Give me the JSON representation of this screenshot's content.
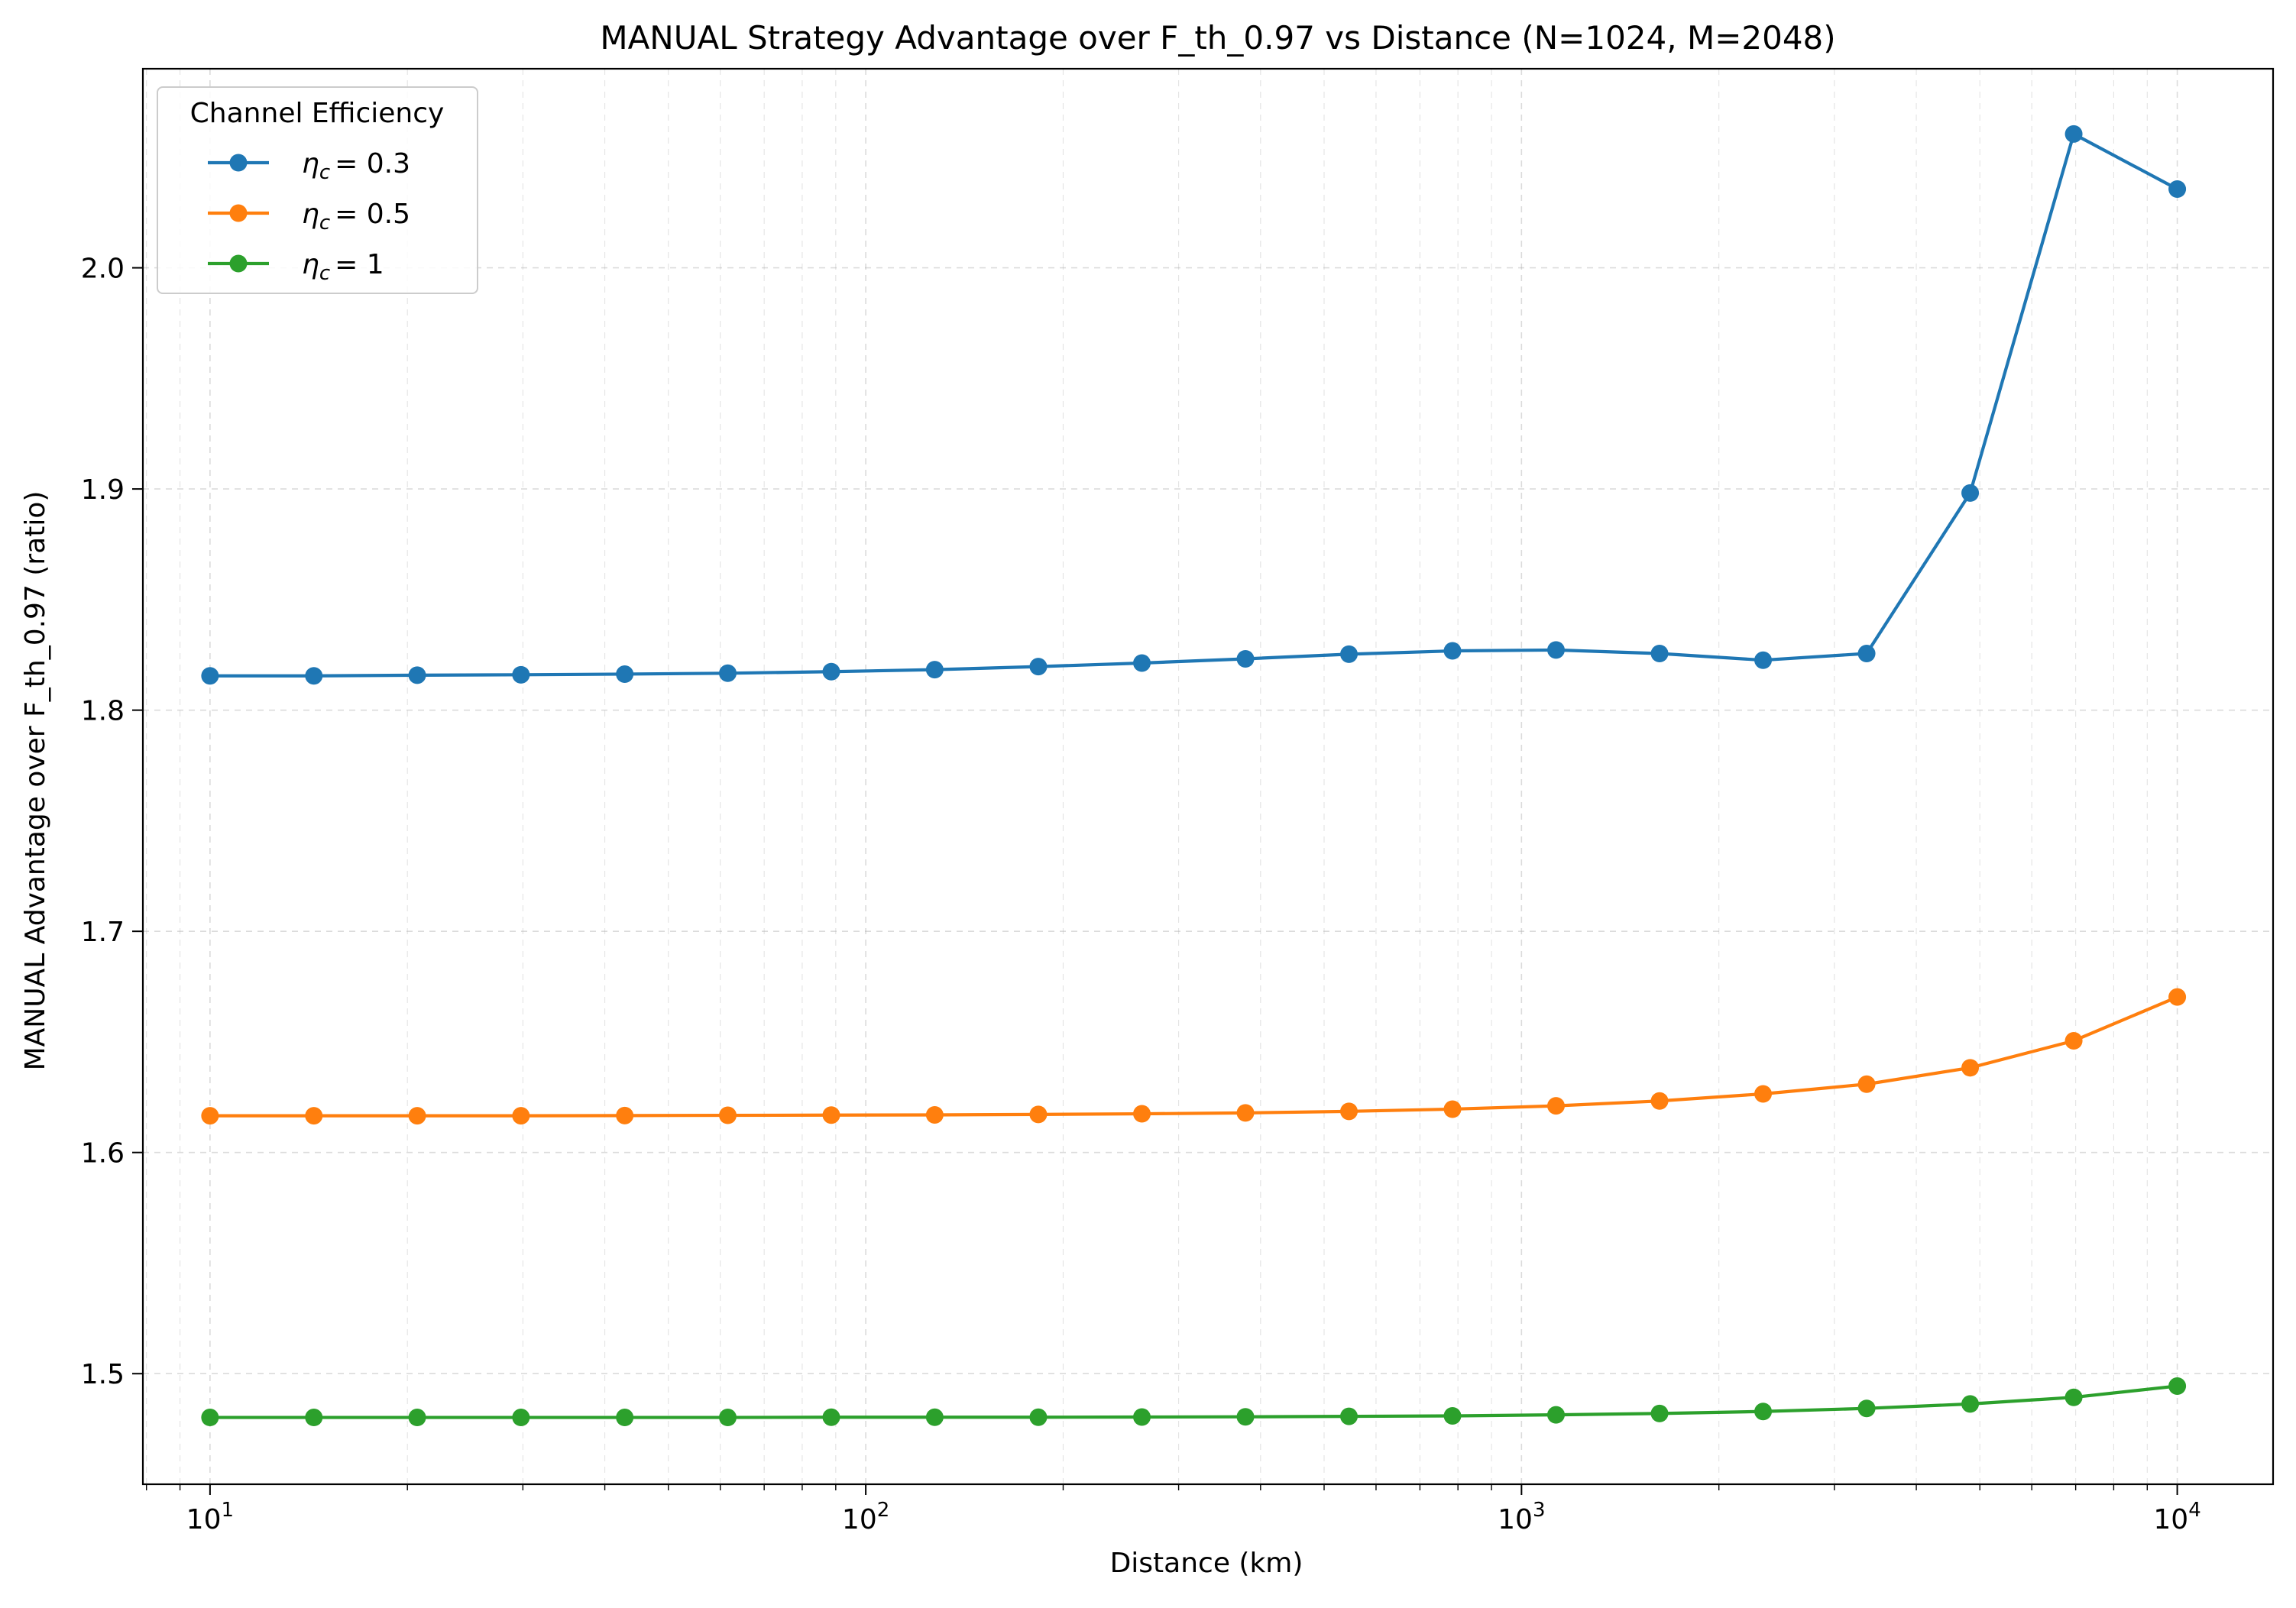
{
  "chart_data": {
    "type": "line",
    "title": "MANUAL Strategy Advantage over F_th_0.97 vs Distance (N=1024, M=2048)",
    "xlabel": "Distance (km)",
    "ylabel": "MANUAL Advantage over F_th_0.97 (ratio)",
    "xscale": "log",
    "xlim": [
      7.9,
      14000
    ],
    "ylim": [
      1.45,
      2.09
    ],
    "x_ticks": [
      {
        "base": "10",
        "exp": "1",
        "value": 10
      },
      {
        "base": "10",
        "exp": "2",
        "value": 100
      },
      {
        "base": "10",
        "exp": "3",
        "value": 1000
      },
      {
        "base": "10",
        "exp": "4",
        "value": 10000
      }
    ],
    "y_ticks": [
      "1.5",
      "1.6",
      "1.7",
      "1.8",
      "1.9",
      "2.0"
    ],
    "grid": true,
    "legend": {
      "title": "Channel Efficiency",
      "placement": "top-left"
    },
    "x": [
      10,
      14.4,
      20.7,
      29.8,
      42.9,
      61.6,
      88.6,
      127.4,
      183.3,
      263.7,
      379.3,
      545.6,
      784.8,
      1128.8,
      1623.8,
      2335.7,
      3359.8,
      4832.9,
      6951.9,
      10000
    ],
    "series": [
      {
        "name": "ηc = 0.3",
        "name_parts": {
          "symbol": "η",
          "sub": "c",
          "rhs": "= 0.3"
        },
        "color": "#1f77b4",
        "values": [
          1.8155,
          1.8155,
          1.8158,
          1.816,
          1.8163,
          1.8167,
          1.8174,
          1.8183,
          1.8197,
          1.8213,
          1.8232,
          1.8253,
          1.8268,
          1.8272,
          1.8256,
          1.8226,
          1.8256,
          1.8982,
          2.0605,
          2.0356
        ]
      },
      {
        "name": "ηc = 0.5",
        "name_parts": {
          "symbol": "η",
          "sub": "c",
          "rhs": "= 0.5"
        },
        "color": "#ff7f0e",
        "values": [
          1.6166,
          1.6166,
          1.6166,
          1.6166,
          1.6167,
          1.6168,
          1.6169,
          1.617,
          1.6172,
          1.6175,
          1.6179,
          1.6186,
          1.6196,
          1.6211,
          1.6233,
          1.6265,
          1.6309,
          1.6383,
          1.6505,
          1.6703
        ]
      },
      {
        "name": "ηc = 1",
        "name_parts": {
          "symbol": "η",
          "sub": "c",
          "rhs": "= 1"
        },
        "color": "#2ca02c",
        "values": [
          1.4802,
          1.4802,
          1.4802,
          1.4802,
          1.4802,
          1.4802,
          1.4803,
          1.4803,
          1.4803,
          1.4804,
          1.4805,
          1.4807,
          1.4809,
          1.4814,
          1.482,
          1.4829,
          1.4843,
          1.4863,
          1.4893,
          1.4944
        ]
      }
    ]
  }
}
